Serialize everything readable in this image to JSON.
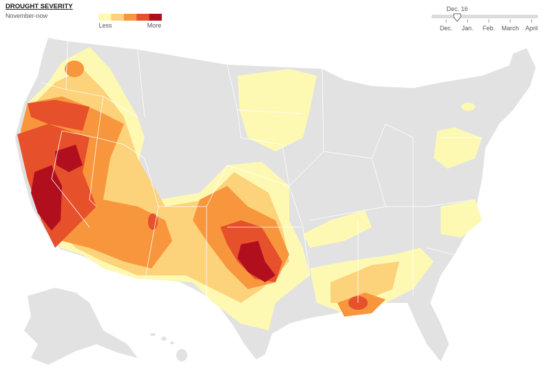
{
  "header": {
    "title": "DROUGHT SEVERITY",
    "subtitle": "November-now"
  },
  "legend": {
    "colors": [
      "#fdf9b3",
      "#fcd27a",
      "#f7963d",
      "#e6502b",
      "#b10f1e"
    ],
    "low_label": "Less",
    "high_label": "More"
  },
  "slider": {
    "current": "Dec. 16",
    "labels": [
      "Dec.",
      "Jan.",
      "Feb.",
      "March",
      "April"
    ]
  }
}
